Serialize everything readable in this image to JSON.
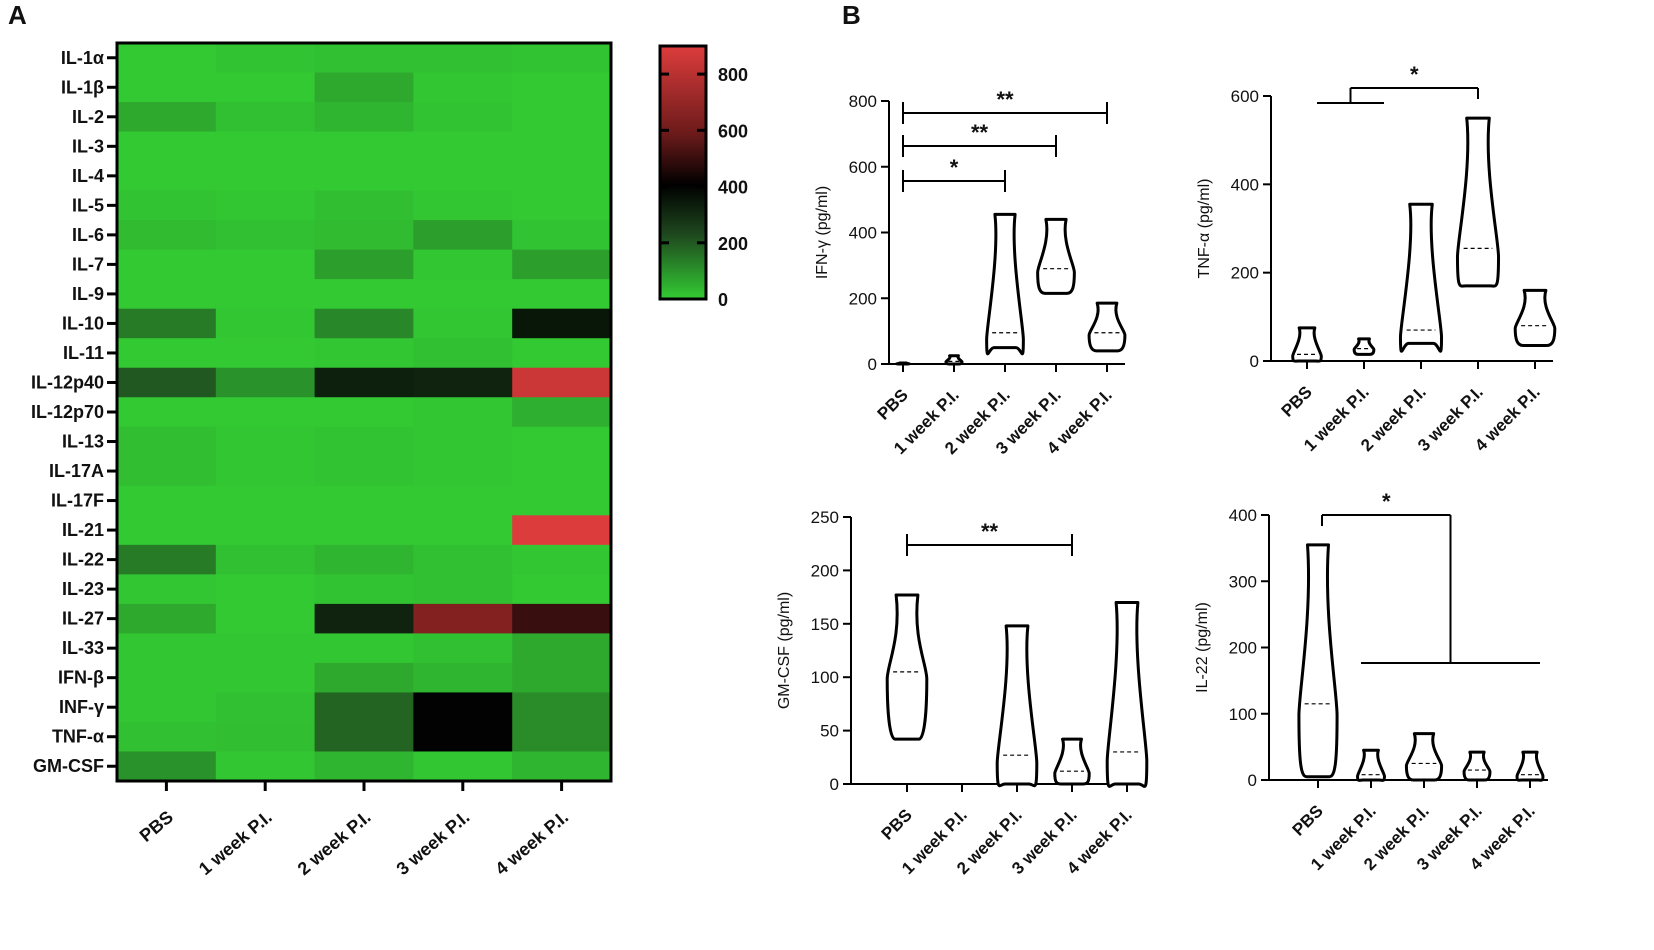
{
  "panel_labels": [
    "A",
    "B"
  ],
  "colors": {
    "heatmap_low": "#33cc33",
    "heatmap_mid_dark": "#1f4a1f",
    "heatmap_black": "#000000",
    "heatmap_mid_red": "#6b1a1a",
    "heatmap_high": "#dd3c3c",
    "axis": "#000000"
  },
  "chart_data": [
    {
      "type": "heatmap",
      "panel": "A",
      "rows": [
        "IL-1α",
        "IL-1β",
        "IL-2",
        "IL-3",
        "IL-4",
        "IL-5",
        "IL-6",
        "IL-7",
        "IL-9",
        "IL-10",
        "IL-11",
        "IL-12p40",
        "IL-12p70",
        "IL-13",
        "IL-17A",
        "IL-17F",
        "IL-21",
        "IL-22",
        "IL-23",
        "IL-27",
        "IL-33",
        "IFN-β",
        "INF-γ",
        "TNF-α",
        "GM-CSF"
      ],
      "columns": [
        "PBS",
        "1 week P.I.",
        "2 week P.I.",
        "3 week P.I.",
        "4 week P.I."
      ],
      "values": [
        [
          5,
          15,
          20,
          20,
          15
        ],
        [
          5,
          5,
          60,
          10,
          5
        ],
        [
          60,
          20,
          40,
          15,
          5
        ],
        [
          5,
          5,
          5,
          5,
          5
        ],
        [
          5,
          5,
          5,
          5,
          5
        ],
        [
          15,
          10,
          25,
          10,
          5
        ],
        [
          30,
          20,
          30,
          80,
          15
        ],
        [
          5,
          5,
          80,
          10,
          80
        ],
        [
          5,
          5,
          5,
          5,
          5
        ],
        [
          140,
          10,
          120,
          10,
          350
        ],
        [
          5,
          5,
          10,
          20,
          5
        ],
        [
          200,
          100,
          330,
          320,
          850
        ],
        [
          5,
          5,
          5,
          10,
          50
        ],
        [
          25,
          10,
          15,
          10,
          5
        ],
        [
          25,
          10,
          15,
          10,
          5
        ],
        [
          5,
          5,
          5,
          5,
          5
        ],
        [
          5,
          5,
          5,
          5,
          900
        ],
        [
          140,
          20,
          40,
          20,
          10
        ],
        [
          10,
          5,
          15,
          20,
          5
        ],
        [
          60,
          5,
          320,
          650,
          500
        ],
        [
          10,
          10,
          10,
          20,
          60
        ],
        [
          10,
          10,
          60,
          40,
          60
        ],
        [
          10,
          20,
          180,
          400,
          110
        ],
        [
          20,
          25,
          180,
          400,
          110
        ],
        [
          100,
          10,
          40,
          10,
          40
        ]
      ],
      "colorbar": {
        "min": 0,
        "max": 900,
        "ticks": [
          0,
          200,
          400,
          600,
          800
        ]
      }
    },
    {
      "type": "violin",
      "panel": "B",
      "ylabel": "IFN-γ (pg/ml)",
      "ylim": [
        0,
        800
      ],
      "yticks": [
        0,
        200,
        400,
        600,
        800
      ],
      "categories": [
        "PBS",
        "1 week P.I.",
        "2 week P.I.",
        "3 week P.I.",
        "4 week P.I."
      ],
      "groups": [
        {
          "min": 0,
          "max": 3,
          "median": 1
        },
        {
          "min": 0,
          "max": 25,
          "median": 8
        },
        {
          "min": 50,
          "max": 455,
          "median": 95
        },
        {
          "min": 215,
          "max": 440,
          "median": 290
        },
        {
          "min": 40,
          "max": 185,
          "median": 95
        }
      ],
      "significance": [
        {
          "from": 0,
          "to": 4,
          "label": "**"
        },
        {
          "from": 0,
          "to": 3,
          "label": "**"
        },
        {
          "from": 0,
          "to": 2,
          "label": "*"
        }
      ]
    },
    {
      "type": "violin",
      "panel": "B",
      "ylabel": "TNF-α (pg/ml)",
      "ylim": [
        0,
        600
      ],
      "yticks": [
        0,
        200,
        400,
        600
      ],
      "categories": [
        "PBS",
        "1 week P.I.",
        "2 week P.I.",
        "3 week P.I.",
        "4 week P.I."
      ],
      "groups": [
        {
          "min": 0,
          "max": 75,
          "median": 15
        },
        {
          "min": 15,
          "max": 50,
          "median": 28
        },
        {
          "min": 40,
          "max": 355,
          "median": 70
        },
        {
          "min": 170,
          "max": 550,
          "median": 255
        },
        {
          "min": 35,
          "max": 160,
          "median": 80
        }
      ],
      "significance": [
        {
          "from": [
            0,
            1
          ],
          "to": 3,
          "label": "*"
        }
      ]
    },
    {
      "type": "violin",
      "panel": "B",
      "ylabel": "GM-CSF (pg/ml)",
      "ylim": [
        0,
        250
      ],
      "yticks": [
        0,
        50,
        100,
        150,
        200,
        250
      ],
      "categories": [
        "PBS",
        "1 week P.I.",
        "2 week P.I.",
        "3 week P.I.",
        "4 week P.I."
      ],
      "groups": [
        {
          "min": 42,
          "max": 177,
          "median": 105
        },
        null,
        {
          "min": 0,
          "max": 148,
          "median": 27
        },
        {
          "min": 0,
          "max": 42,
          "median": 12
        },
        {
          "min": 0,
          "max": 170,
          "median": 30
        }
      ],
      "significance": [
        {
          "from": 0,
          "to": 3,
          "label": "**"
        }
      ]
    },
    {
      "type": "violin",
      "panel": "B",
      "ylabel": "IL-22 (pg/ml)",
      "ylim": [
        0,
        400
      ],
      "yticks": [
        0,
        100,
        200,
        300,
        400
      ],
      "categories": [
        "PBS",
        "1 week P.I.",
        "2 week P.I.",
        "3 week P.I.",
        "4 week P.I."
      ],
      "groups": [
        {
          "min": 5,
          "max": 355,
          "median": 115
        },
        {
          "min": 0,
          "max": 45,
          "median": 8
        },
        {
          "min": 0,
          "max": 70,
          "median": 25
        },
        {
          "min": 0,
          "max": 42,
          "median": 15
        },
        {
          "min": 0,
          "max": 42,
          "median": 8
        }
      ],
      "significance": [
        {
          "from": 0,
          "to": [
            1,
            2,
            3,
            4
          ],
          "label": "*"
        }
      ]
    }
  ]
}
